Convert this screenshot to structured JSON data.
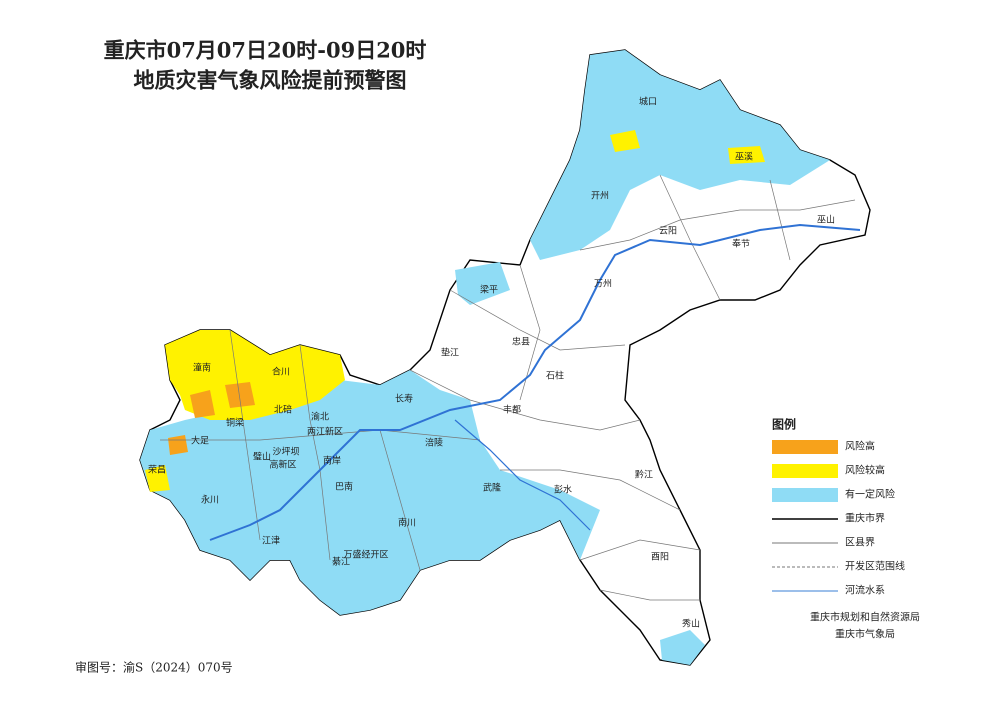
{
  "title": [
    "重庆市07月07日20时-09日20时",
    "地质灾害气象风险提前预警图"
  ],
  "labels": [
    "城口",
    "巫溪",
    "开州",
    "云阳",
    "巫山",
    "奉节",
    "万州",
    "梁平",
    "垫江",
    "忠县",
    "石柱",
    "丰都",
    "长寿",
    "涪陵",
    "潼南",
    "合川",
    "铜梁",
    "北碚",
    "渝北",
    "两江新区",
    "大足",
    "璧山",
    "沙坪坝",
    "高新区",
    "南岸",
    "荣昌",
    "永川",
    "巴南",
    "武隆",
    "彭水",
    "黔江",
    "南川",
    "江津",
    "綦江",
    "万盛经开区",
    "酉阳",
    "秀山"
  ],
  "legend": {
    "title": "图例",
    "items": [
      {
        "name": "风险高",
        "kind": "fill",
        "color": "#f7a21b"
      },
      {
        "name": "风险较高",
        "kind": "fill",
        "color": "#fff200"
      },
      {
        "name": "有一定风险",
        "kind": "fill",
        "color": "#8fdcf5"
      },
      {
        "name": "重庆市界",
        "kind": "line",
        "color": "#000000"
      },
      {
        "name": "区县界",
        "kind": "line",
        "color": "#777777"
      },
      {
        "name": "开发区范围线",
        "kind": "dash",
        "color": "#777777"
      },
      {
        "name": "河流水系",
        "kind": "line",
        "color": "#3a7fd5"
      }
    ]
  },
  "credits": [
    "重庆市规划和自然资源局",
    "重庆市气象局"
  ],
  "review_number": "审图号：渝S（2024）070号"
}
